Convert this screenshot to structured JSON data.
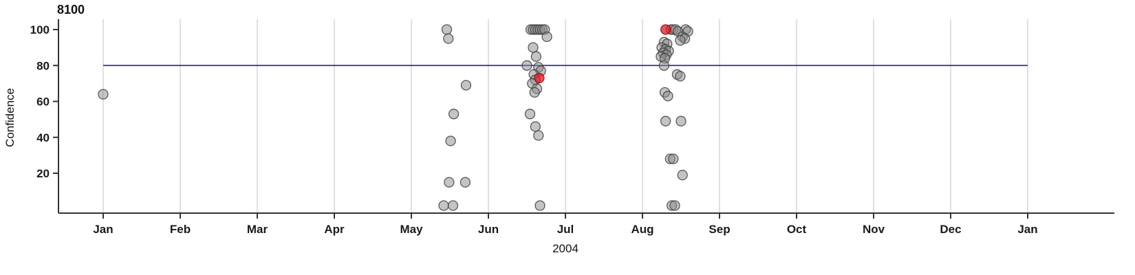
{
  "chart_data": {
    "type": "scatter",
    "title": "8100",
    "xlabel": "2004",
    "ylabel": "Confidence",
    "x_axis": {
      "tick_labels": [
        "Jan",
        "Feb",
        "Mar",
        "Apr",
        "May",
        "Jun",
        "Jul",
        "Aug",
        "Sep",
        "Oct",
        "Nov",
        "Dec",
        "Jan"
      ],
      "unit": "months since 2004-01-01",
      "range": [
        0,
        12
      ],
      "grid": "vertical-light-gray"
    },
    "y_axis": {
      "tick_values": [
        20,
        40,
        60,
        80,
        100
      ],
      "range": [
        0,
        105
      ]
    },
    "legend": "none",
    "reference_line": {
      "y": 80,
      "color": "#2d2d9e"
    },
    "series": [
      {
        "name": "observation",
        "marker": "circle",
        "color": "#8a8a8a",
        "stroke": "#3f3f3f",
        "fill_opacity": 0.5,
        "points": [
          [
            0.0,
            64
          ],
          [
            4.46,
            100
          ],
          [
            4.48,
            95
          ],
          [
            4.71,
            69
          ],
          [
            4.55,
            53
          ],
          [
            4.51,
            38
          ],
          [
            4.49,
            15
          ],
          [
            4.7,
            15
          ],
          [
            4.42,
            2
          ],
          [
            4.54,
            2
          ],
          [
            5.55,
            100
          ],
          [
            5.58,
            100
          ],
          [
            5.61,
            100
          ],
          [
            5.64,
            100
          ],
          [
            5.67,
            100
          ],
          [
            5.7,
            100
          ],
          [
            5.73,
            100
          ],
          [
            5.76,
            96
          ],
          [
            5.58,
            90
          ],
          [
            5.62,
            85
          ],
          [
            5.5,
            80
          ],
          [
            5.65,
            79
          ],
          [
            5.68,
            77
          ],
          [
            5.59,
            75
          ],
          [
            5.61,
            72
          ],
          [
            5.57,
            70
          ],
          [
            5.63,
            67
          ],
          [
            5.6,
            65
          ],
          [
            5.54,
            53
          ],
          [
            5.61,
            46
          ],
          [
            5.65,
            41
          ],
          [
            5.67,
            2
          ],
          [
            7.37,
            100
          ],
          [
            7.4,
            100
          ],
          [
            7.43,
            100
          ],
          [
            7.56,
            100
          ],
          [
            7.46,
            99
          ],
          [
            7.59,
            99
          ],
          [
            7.52,
            96
          ],
          [
            7.55,
            95
          ],
          [
            7.49,
            94
          ],
          [
            7.28,
            93
          ],
          [
            7.32,
            92
          ],
          [
            7.25,
            90
          ],
          [
            7.3,
            89
          ],
          [
            7.34,
            88
          ],
          [
            7.27,
            87
          ],
          [
            7.31,
            86
          ],
          [
            7.24,
            85
          ],
          [
            7.29,
            84
          ],
          [
            7.28,
            80
          ],
          [
            7.45,
            75
          ],
          [
            7.49,
            74
          ],
          [
            7.29,
            65
          ],
          [
            7.33,
            63
          ],
          [
            7.3,
            49
          ],
          [
            7.5,
            49
          ],
          [
            7.36,
            28
          ],
          [
            7.4,
            28
          ],
          [
            7.52,
            19
          ],
          [
            7.38,
            2
          ],
          [
            7.42,
            2
          ]
        ]
      },
      {
        "name": "highlighted-observation",
        "marker": "circle",
        "color": "#e31a1c",
        "stroke": "#99000d",
        "fill_opacity": 0.75,
        "points": [
          [
            5.66,
            73
          ],
          [
            7.3,
            100
          ]
        ]
      }
    ]
  }
}
